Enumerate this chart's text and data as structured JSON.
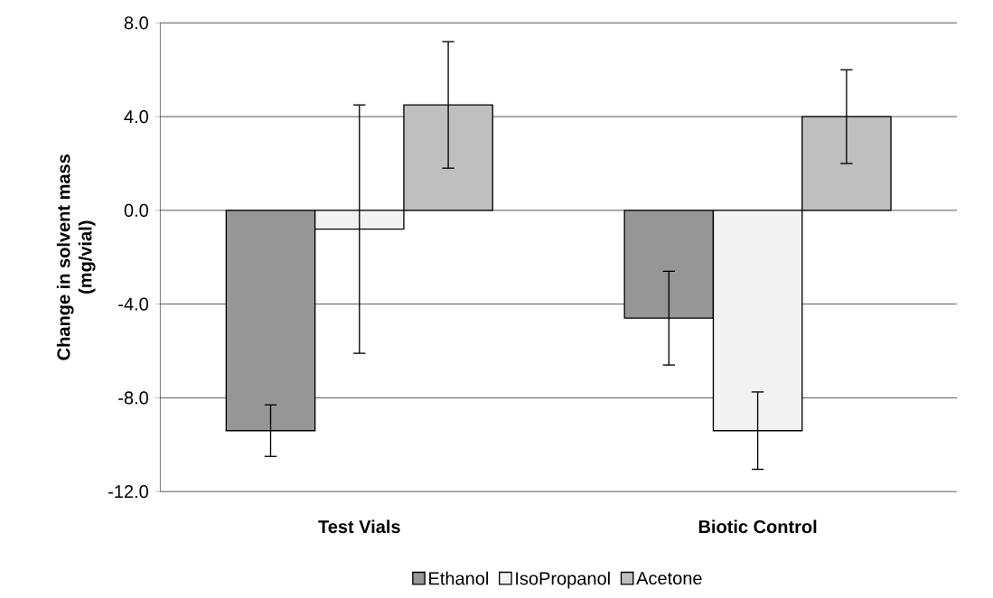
{
  "chart_data": {
    "type": "bar",
    "ylabel": "Change in solvent mass\n(mg/vial)",
    "categories": [
      "Test Vials",
      "Biotic Control"
    ],
    "series": [
      {
        "name": "Ethanol",
        "color": "#969696",
        "values": [
          -9.4,
          -4.6
        ],
        "errors": [
          1.1,
          2.0
        ]
      },
      {
        "name": "IsoPropanol",
        "color": "#f2f2f2",
        "values": [
          -0.8,
          -9.4
        ],
        "errors": [
          5.3,
          1.65
        ]
      },
      {
        "name": "Acetone",
        "color": "#bfbfbf",
        "values": [
          4.5,
          4.0
        ],
        "errors": [
          2.7,
          2.0
        ]
      }
    ],
    "ylim": [
      -12,
      8
    ],
    "yticks": [
      {
        "value": -12,
        "label": "-12.0"
      },
      {
        "value": -8,
        "label": "-8.0"
      },
      {
        "value": -4,
        "label": "-4.0"
      },
      {
        "value": 0,
        "label": "0.0"
      },
      {
        "value": 4,
        "label": "4.0"
      },
      {
        "value": 8,
        "label": "8.0"
      }
    ],
    "grid": "y",
    "legend": "bottom"
  }
}
